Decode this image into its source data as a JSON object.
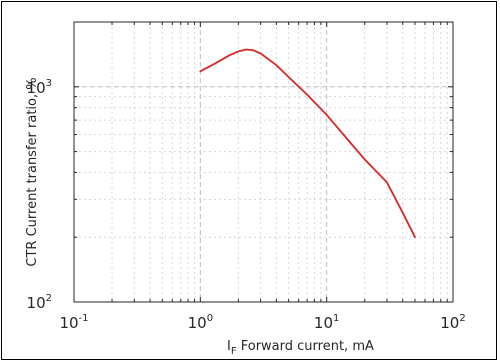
{
  "chart_data": {
    "type": "line",
    "xlabel": "I",
    "xlabel_sub": "F",
    "xlabel_rest": " Forward current, mA",
    "ylabel": "CTR Current transfer ratio, %",
    "xscale": "log",
    "yscale": "log",
    "xlim": [
      0.1,
      100
    ],
    "ylim": [
      100,
      2000
    ],
    "x_tick_labels": [
      {
        "base": "10",
        "exp": "-1",
        "value": 0.1
      },
      {
        "base": "10",
        "exp": "0",
        "value": 1
      },
      {
        "base": "10",
        "exp": "1",
        "value": 10
      },
      {
        "base": "10",
        "exp": "2",
        "value": 100
      }
    ],
    "y_tick_labels": [
      {
        "base": "10",
        "exp": "2",
        "value": 100
      },
      {
        "base": "10",
        "exp": "3",
        "value": 1000
      }
    ],
    "grid": true,
    "series": [
      {
        "color": "#d62728",
        "x": [
          1.0,
          1.3,
          1.7,
          2.0,
          2.3,
          2.6,
          3.0,
          4.0,
          5.0,
          7.0,
          10,
          15,
          20,
          30,
          40,
          50
        ],
        "y": [
          1180,
          1280,
          1400,
          1460,
          1490,
          1480,
          1430,
          1260,
          1110,
          920,
          740,
          560,
          460,
          360,
          260,
          200
        ]
      }
    ]
  }
}
